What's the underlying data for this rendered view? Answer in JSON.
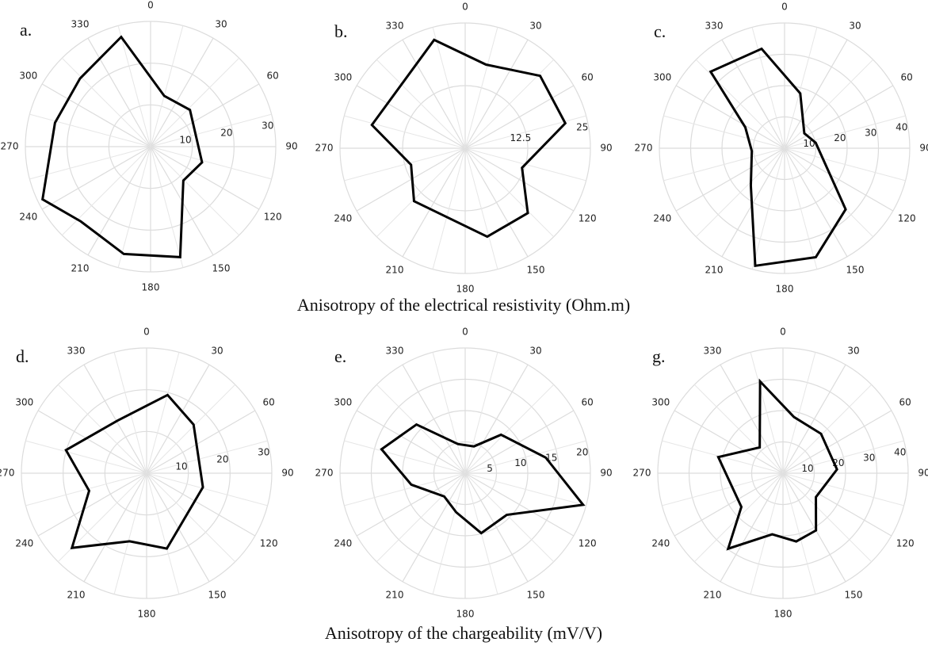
{
  "chart_data": [
    {
      "type": "radar",
      "panel": "a.",
      "xticks": [
        0,
        30,
        60,
        90,
        120,
        150,
        180,
        210,
        240,
        270,
        300,
        330
      ],
      "ylim": [
        0,
        30
      ],
      "yticks": [
        10,
        20,
        30
      ],
      "color": "#000000",
      "x": [
        15,
        47,
        107,
        136,
        165,
        194,
        223,
        244,
        284,
        314,
        345
      ],
      "values": [
        12.6,
        12.9,
        12.9,
        11.3,
        27.4,
        26.5,
        24.5,
        28.8,
        23.6,
        23.5,
        27.2
      ]
    },
    {
      "type": "radar",
      "panel": "b.",
      "xticks": [
        0,
        30,
        60,
        90,
        120,
        150,
        180,
        210,
        240,
        270,
        300,
        330
      ],
      "ylim": [
        0,
        25
      ],
      "yticks": [
        12.5,
        25
      ],
      "color": "#000000",
      "x": [
        14,
        46,
        76,
        109,
        136,
        166,
        224,
        253,
        284,
        344
      ],
      "values": [
        17.2,
        20.8,
        20.6,
        12.0,
        18.0,
        18.2,
        14.7,
        11.3,
        19.2,
        22.5
      ]
    },
    {
      "type": "radar",
      "panel": "c.",
      "xticks": [
        0,
        30,
        60,
        90,
        120,
        150,
        180,
        210,
        240,
        270,
        300,
        330
      ],
      "ylim": [
        0,
        40
      ],
      "yticks": [
        10,
        20,
        30,
        40
      ],
      "color": "#000000",
      "x": [
        16,
        53,
        80,
        135,
        164,
        194,
        222,
        265,
        298,
        316,
        347
      ],
      "values": [
        18.2,
        7.9,
        10.1,
        27.6,
        36.2,
        38.7,
        16.1,
        10.5,
        14.2,
        34.0,
        32.6
      ]
    },
    {
      "type": "radar",
      "panel": "d.",
      "xticks": [
        0,
        30,
        60,
        90,
        120,
        150,
        180,
        210,
        240,
        270,
        300,
        330
      ],
      "ylim": [
        0,
        30
      ],
      "yticks": [
        10,
        20,
        30
      ],
      "color": "#000000",
      "x": [
        15,
        44,
        104,
        165,
        194,
        225,
        253,
        286,
        331
      ],
      "values": [
        19.4,
        16.2,
        13.9,
        18.7,
        16.8,
        25.3,
        14.4,
        20.1,
        14.4
      ]
    },
    {
      "type": "radar",
      "panel": "e.",
      "xticks": [
        0,
        30,
        60,
        90,
        120,
        150,
        180,
        210,
        240,
        270,
        300,
        330
      ],
      "ylim": [
        0,
        20
      ],
      "yticks": [
        5,
        10,
        15,
        20
      ],
      "color": "#000000",
      "x": [
        18,
        43,
        79,
        105,
        135,
        165,
        193,
        222,
        258,
        286,
        315,
        346
      ],
      "values": [
        4.5,
        8.4,
        13.1,
        19.5,
        9.4,
        9.9,
        6.4,
        5.0,
        8.8,
        13.9,
        11.0,
        4.8
      ]
    },
    {
      "type": "radar",
      "panel": "g.",
      "xticks": [
        0,
        30,
        60,
        90,
        120,
        150,
        180,
        210,
        240,
        270,
        300,
        330
      ],
      "ylim": [
        0,
        40
      ],
      "yticks": [
        10,
        20,
        30,
        40
      ],
      "color": "#000000",
      "x": [
        11,
        44,
        86,
        126,
        150,
        169,
        190,
        216,
        231,
        284,
        318,
        346
      ],
      "values": [
        18.3,
        17.5,
        17.3,
        13.0,
        21.1,
        22.2,
        19.8,
        29.8,
        17.1,
        21.3,
        11.1,
        30.2
      ]
    }
  ],
  "captions": [
    "Anisotropy of the electrical resistivity (Ohm.m)",
    "Anisotropy of the chargeability (mV/V)"
  ]
}
